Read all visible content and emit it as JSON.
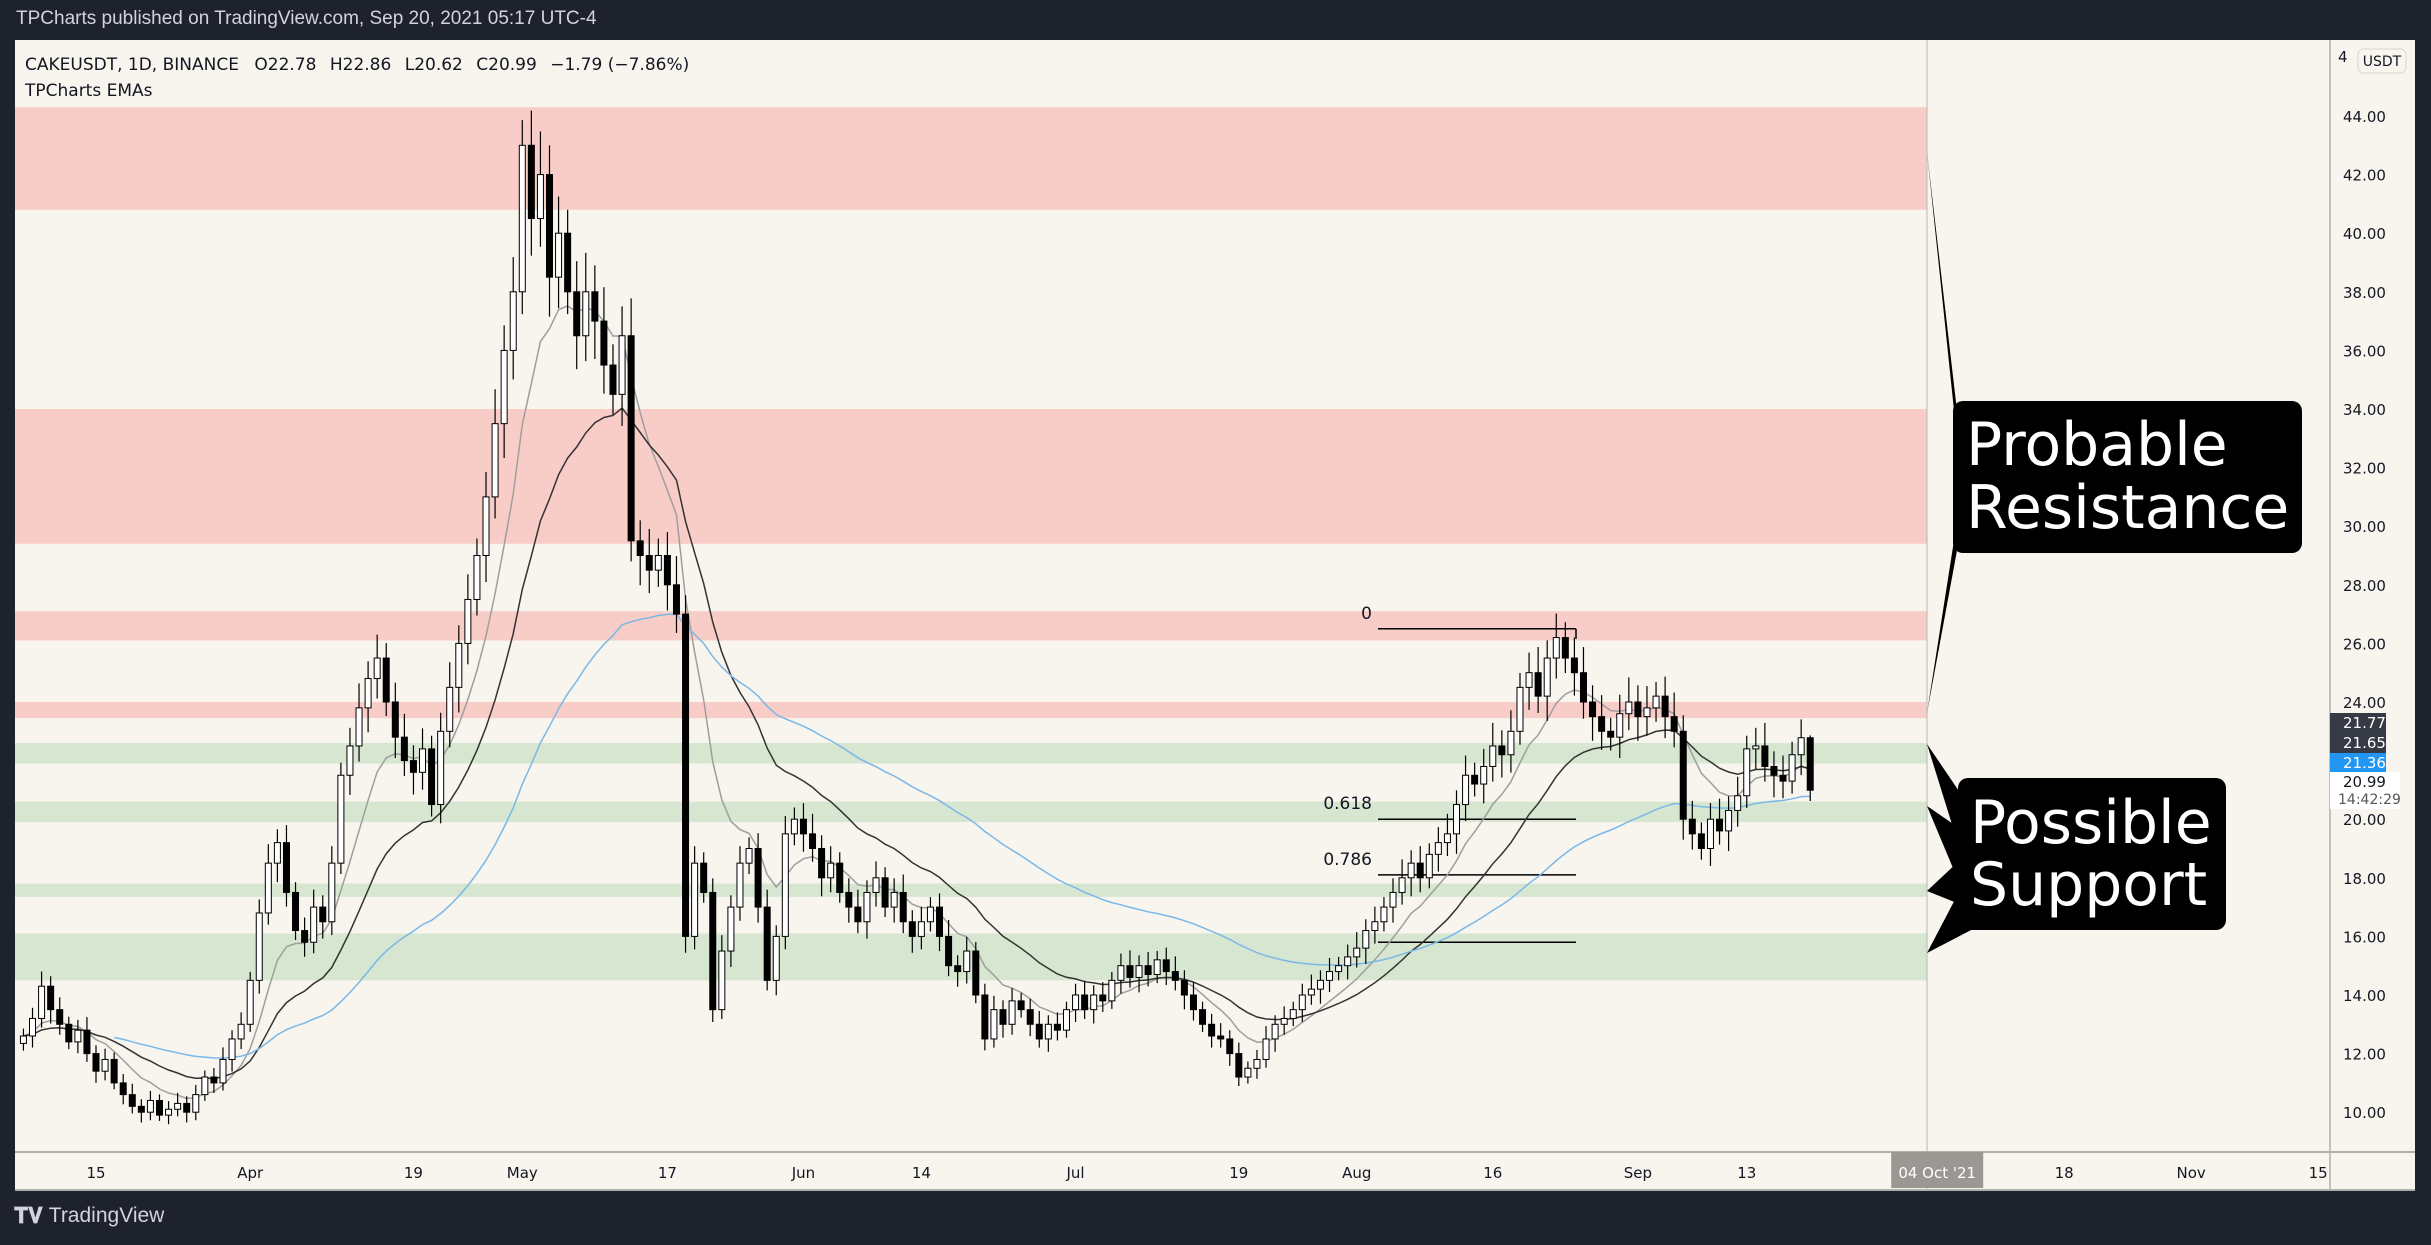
{
  "header": {
    "publisher": "TPCharts published on TradingView.com, Sep 20, 2021 05:17 UTC-4"
  },
  "legend": {
    "symbol": "CAKEUSDT, 1D, BINANCE",
    "open": "O22.78",
    "high": "H22.86",
    "low": "L20.62",
    "close": "C20.99",
    "change": "−1.79 (−7.86%)",
    "indicator": "TPCharts EMAs"
  },
  "footer": {
    "brand": "TradingView",
    "logo_icon": "tradingview-logo-icon"
  },
  "price_axis": {
    "currency": "USDT",
    "top_partial": "4",
    "ticks": [
      "44.00",
      "42.00",
      "40.00",
      "38.00",
      "36.00",
      "34.00",
      "32.00",
      "30.00",
      "28.00",
      "26.00",
      "24.00",
      "20.00",
      "18.00",
      "16.00",
      "14.00",
      "12.00",
      "10.00"
    ],
    "labels": [
      {
        "value": "21.77",
        "color": "#363a45"
      },
      {
        "value": "21.65",
        "color": "#363a45"
      },
      {
        "value": "21.36",
        "color": "#2196f3"
      },
      {
        "value": "20.99",
        "color": "#ffffff",
        "countdown": "14:42:29"
      }
    ]
  },
  "time_axis": {
    "ticks": [
      "15",
      "Apr",
      "19",
      "May",
      "17",
      "Jun",
      "14",
      "Jul",
      "19",
      "Aug",
      "16",
      "Sep",
      "13",
      "04 Oct '21",
      "18",
      "Nov",
      "15"
    ],
    "crosshair_label": "04 Oct '21"
  },
  "annotations": {
    "resistance": [
      "Probable",
      "Resistance"
    ],
    "support": [
      "Possible",
      "Support"
    ],
    "fib_levels": [
      {
        "label": "0",
        "price": 26.5
      },
      {
        "label": "0.618",
        "price": 20.0
      },
      {
        "label": "0.786",
        "price": 18.1
      },
      {
        "label": "",
        "price": 15.8
      }
    ]
  },
  "chart_data": {
    "type": "candlestick",
    "symbol": "CAKEUSDT",
    "interval": "1D",
    "start_date": "2021-03-07",
    "end_date": "2021-09-20",
    "ylim": [
      9,
      45
    ],
    "grid": false,
    "colors": {
      "up": "#ffffff",
      "down": "#000000",
      "ema_fast": "#9e9e9e",
      "ema_mid": "#333333",
      "ema_slow": "#7ab8e8",
      "resistance_zone": "#f8cdc8",
      "support_zone": "#d6e6d0"
    },
    "last_candle": {
      "open": 22.78,
      "high": 22.86,
      "low": 20.62,
      "close": 20.99
    },
    "closes": [
      12.6,
      13.2,
      14.3,
      13.5,
      13.0,
      12.4,
      12.8,
      12.0,
      11.4,
      11.8,
      11.0,
      10.6,
      10.2,
      10.0,
      10.4,
      9.9,
      10.1,
      10.3,
      10.0,
      10.6,
      11.2,
      11.0,
      11.8,
      12.5,
      13.0,
      14.5,
      16.8,
      18.5,
      19.2,
      17.5,
      16.2,
      15.8,
      17.0,
      16.5,
      18.5,
      21.5,
      22.5,
      23.8,
      24.8,
      25.5,
      24.0,
      22.8,
      22.0,
      21.6,
      22.4,
      20.5,
      23.0,
      24.5,
      26.0,
      27.5,
      29.0,
      31.0,
      33.5,
      36.0,
      38.0,
      43.0,
      40.5,
      42.0,
      38.5,
      40.0,
      38.0,
      36.5,
      38.0,
      37.0,
      35.5,
      34.5,
      36.5,
      29.5,
      29.0,
      28.5,
      29.0,
      28.0,
      27.0,
      16.0,
      18.5,
      17.5,
      13.5,
      15.5,
      17.0,
      18.5,
      19.0,
      17.0,
      14.5,
      16.0,
      19.5,
      20.0,
      19.5,
      19.0,
      18.0,
      18.5,
      17.5,
      17.0,
      16.5,
      17.5,
      18.0,
      17.0,
      17.5,
      16.5,
      16.0,
      16.5,
      17.0,
      16.0,
      15.0,
      14.8,
      15.5,
      14.0,
      12.5,
      13.5,
      13.0,
      13.8,
      13.5,
      13.0,
      12.5,
      13.0,
      12.8,
      13.5,
      14.0,
      13.5,
      14.0,
      13.8,
      14.5,
      15.0,
      14.6,
      15.0,
      14.7,
      15.2,
      14.8,
      14.5,
      14.0,
      13.5,
      13.0,
      12.6,
      12.5,
      12.0,
      11.2,
      11.5,
      11.8,
      12.5,
      13.0,
      13.2,
      13.5,
      14.0,
      14.2,
      14.5,
      14.8,
      15.0,
      15.3,
      15.6,
      16.2,
      16.5,
      17.0,
      17.5,
      18.0,
      18.5,
      18.0,
      18.8,
      19.2,
      19.5,
      20.5,
      21.5,
      21.2,
      21.8,
      22.5,
      22.2,
      23.0,
      24.5,
      25.0,
      24.2,
      25.5,
      26.2,
      25.5,
      25.0,
      24.0,
      23.5,
      23.0,
      22.8,
      23.6,
      24.0,
      23.5,
      23.8,
      24.2,
      23.5,
      23.0,
      20.0,
      19.5,
      19.0,
      20.0,
      19.6,
      20.3,
      20.8,
      22.4,
      22.5,
      21.8,
      21.5,
      21.3,
      22.2,
      22.78,
      20.99
    ],
    "zones": [
      {
        "kind": "resistance",
        "from": 40.8,
        "to": 44.3
      },
      {
        "kind": "resistance",
        "from": 29.4,
        "to": 34.0
      },
      {
        "kind": "resistance",
        "from": 26.1,
        "to": 27.1
      },
      {
        "kind": "resistance",
        "from": 23.45,
        "to": 24.0
      },
      {
        "kind": "support",
        "from": 21.9,
        "to": 22.6
      },
      {
        "kind": "support",
        "from": 19.9,
        "to": 20.6
      },
      {
        "kind": "support",
        "from": 17.35,
        "to": 17.8
      },
      {
        "kind": "support",
        "from": 14.5,
        "to": 16.1
      }
    ]
  }
}
